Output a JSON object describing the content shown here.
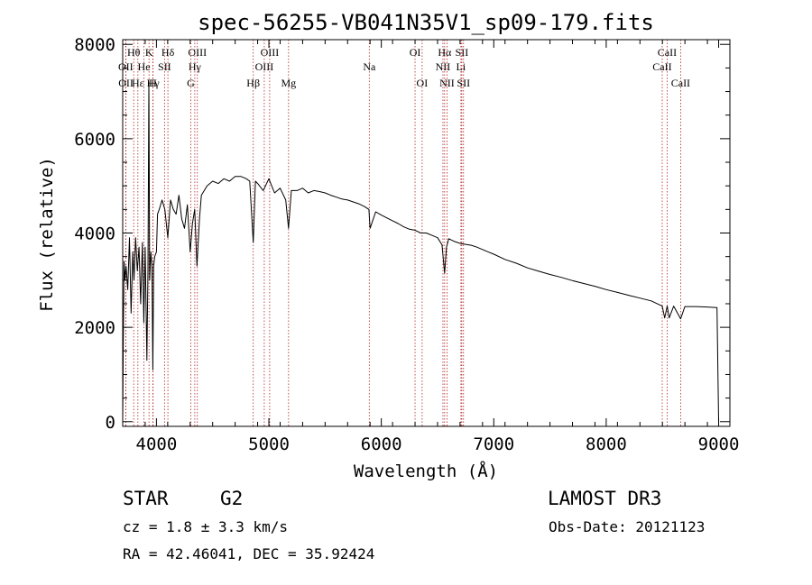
{
  "chart_data": {
    "type": "line",
    "title": "spec-56255-VB041N35V1_sp09-179.fits",
    "xlabel": "Wavelength (Å)",
    "ylabel": "Flux (relative)",
    "xlim": [
      3700,
      9100
    ],
    "ylim": [
      -100,
      8100
    ],
    "xticks": [
      4000,
      5000,
      6000,
      7000,
      8000,
      9000
    ],
    "yticks": [
      0,
      2000,
      4000,
      6000,
      8000
    ],
    "series": [
      {
        "name": "flux",
        "x": [
          3700,
          3705,
          3712,
          3720,
          3730,
          3745,
          3760,
          3775,
          3790,
          3800,
          3815,
          3830,
          3845,
          3860,
          3875,
          3888,
          3900,
          3915,
          3925,
          3933,
          3940,
          3950,
          3960,
          3968,
          3975,
          3985,
          4000,
          4010,
          4025,
          4050,
          4075,
          4101,
          4125,
          4150,
          4175,
          4200,
          4225,
          4250,
          4275,
          4300,
          4320,
          4340,
          4360,
          4383,
          4400,
          4450,
          4500,
          4550,
          4600,
          4650,
          4700,
          4750,
          4800,
          4830,
          4861,
          4880,
          4900,
          4950,
          5000,
          5050,
          5100,
          5150,
          5175,
          5200,
          5250,
          5300,
          5350,
          5400,
          5450,
          5500,
          5550,
          5600,
          5650,
          5700,
          5750,
          5800,
          5850,
          5890,
          5900,
          5950,
          6000,
          6050,
          6100,
          6150,
          6200,
          6250,
          6300,
          6350,
          6400,
          6450,
          6500,
          6540,
          6563,
          6580,
          6600,
          6650,
          6700,
          6750,
          6800,
          6850,
          6900,
          6950,
          7000,
          7100,
          7200,
          7300,
          7400,
          7500,
          7600,
          7700,
          7800,
          7900,
          8000,
          8100,
          8200,
          8300,
          8400,
          8498,
          8520,
          8542,
          8560,
          8600,
          8662,
          8700,
          8800,
          8900,
          8985,
          9000
        ],
        "y": [
          0,
          1600,
          3400,
          3000,
          3300,
          2800,
          3900,
          2300,
          3600,
          3000,
          3900,
          3200,
          3700,
          2500,
          3800,
          2100,
          3700,
          1300,
          3200,
          7200,
          3000,
          3600,
          3300,
          1100,
          3300,
          3500,
          3600,
          4400,
          4500,
          4700,
          4500,
          3900,
          4700,
          4500,
          4400,
          4800,
          4300,
          4100,
          4600,
          3600,
          4200,
          4500,
          3300,
          4300,
          4800,
          5000,
          5100,
          5050,
          5150,
          5100,
          5200,
          5200,
          5150,
          5100,
          3800,
          5100,
          5050,
          4900,
          5150,
          4850,
          4950,
          4700,
          4100,
          4900,
          4900,
          4950,
          4850,
          4900,
          4880,
          4850,
          4800,
          4760,
          4720,
          4700,
          4660,
          4620,
          4560,
          4500,
          4100,
          4450,
          4380,
          4320,
          4260,
          4200,
          4130,
          4080,
          4060,
          4000,
          4000,
          3950,
          3900,
          3750,
          3150,
          3700,
          3880,
          3820,
          3780,
          3760,
          3740,
          3700,
          3650,
          3600,
          3550,
          3440,
          3360,
          3260,
          3190,
          3120,
          3060,
          2990,
          2930,
          2870,
          2800,
          2740,
          2680,
          2620,
          2560,
          2450,
          2200,
          2450,
          2200,
          2450,
          2180,
          2440,
          2440,
          2430,
          2420,
          0
        ]
      }
    ],
    "lines": [
      {
        "label": "Hθ",
        "x": 3798,
        "row": 1
      },
      {
        "label": "OII",
        "x": 3727,
        "row": 2
      },
      {
        "label": "OII",
        "x": 3729,
        "row": 3
      },
      {
        "label": "Hε",
        "x": 3835,
        "row": 3
      },
      {
        "label": "He",
        "x": 3889,
        "row": 2
      },
      {
        "label": "Hγ",
        "x": 3970,
        "row": 3
      },
      {
        "label": "K",
        "x": 3934,
        "row": 1
      },
      {
        "label": "H",
        "x": 3968,
        "row": 3
      },
      {
        "label": "SII",
        "x": 4072,
        "row": 2
      },
      {
        "label": "Hδ",
        "x": 4102,
        "row": 1
      },
      {
        "label": "OIII",
        "x": 4364,
        "row": 1
      },
      {
        "label": "Hγ",
        "x": 4341,
        "row": 2
      },
      {
        "label": "G",
        "x": 4305,
        "row": 3
      },
      {
        "label": "Hβ",
        "x": 4861,
        "row": 3
      },
      {
        "label": "OIII",
        "x": 5007,
        "row": 1
      },
      {
        "label": "OIII",
        "x": 4959,
        "row": 2
      },
      {
        "label": "Mg",
        "x": 5175,
        "row": 3
      },
      {
        "label": "Na",
        "x": 5893,
        "row": 2
      },
      {
        "label": "OI",
        "x": 6300,
        "row": 1
      },
      {
        "label": "OI",
        "x": 6363,
        "row": 3
      },
      {
        "label": "Hα",
        "x": 6563,
        "row": 1
      },
      {
        "label": "NII",
        "x": 6548,
        "row": 2
      },
      {
        "label": "NII",
        "x": 6584,
        "row": 3
      },
      {
        "label": "SII",
        "x": 6716,
        "row": 1
      },
      {
        "label": "Li",
        "x": 6708,
        "row": 2
      },
      {
        "label": "SII",
        "x": 6731,
        "row": 3
      },
      {
        "label": "CaII",
        "x": 8542,
        "row": 1
      },
      {
        "label": "CaII",
        "x": 8498,
        "row": 2
      },
      {
        "label": "CaII",
        "x": 8662,
        "row": 3
      }
    ],
    "grid": false
  },
  "info": {
    "classification": "STAR",
    "subclass": "G2",
    "survey": "LAMOST DR3",
    "redshift": "cz = 1.8 ± 3.3 km/s",
    "obs_date": "Obs-Date: 20121123",
    "coords": "RA =  42.46041, DEC =  35.92424"
  }
}
